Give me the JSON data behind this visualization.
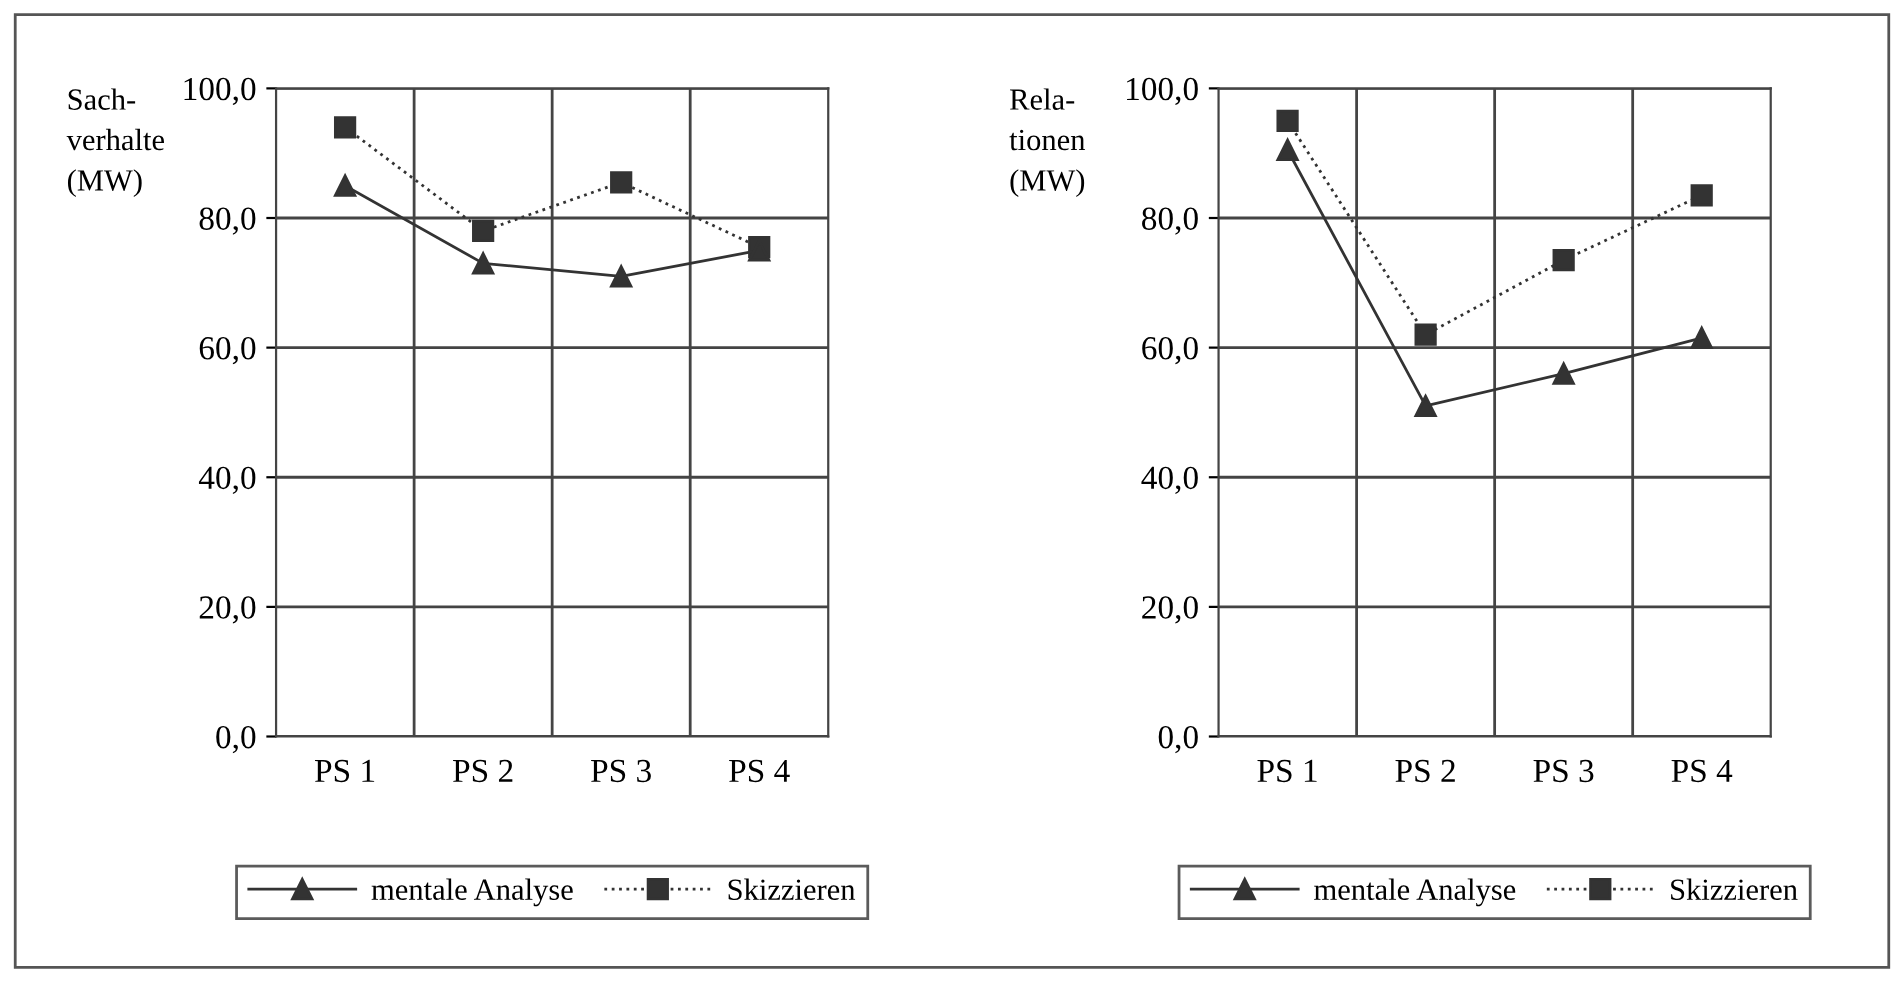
{
  "chart_data": [
    {
      "type": "line",
      "ylabel": "Sach-\nverhalte\n(MW)",
      "categories": [
        "PS 1",
        "PS 2",
        "PS 3",
        "PS 4"
      ],
      "series": [
        {
          "name": "mentale Analyse",
          "color": "#333333",
          "marker": "triangle",
          "line_style": "solid",
          "values": [
            85,
            73,
            71,
            75
          ]
        },
        {
          "name": "Skizzieren",
          "color": "#333333",
          "marker": "square",
          "line_style": "dotted",
          "values": [
            94,
            78,
            85.5,
            75.5
          ]
        }
      ],
      "ylim": [
        0,
        100
      ],
      "yticks": [
        {
          "value": 0,
          "label": "0,0"
        },
        {
          "value": 20,
          "label": "20,0"
        },
        {
          "value": 40,
          "label": "40,0"
        },
        {
          "value": 60,
          "label": "60,0"
        },
        {
          "value": 80,
          "label": "80,0"
        },
        {
          "value": 100,
          "label": "100,0"
        }
      ],
      "grid": true,
      "legend": "bottom"
    },
    {
      "type": "line",
      "ylabel": "Rela-\ntionen\n(MW)",
      "categories": [
        "PS 1",
        "PS 2",
        "PS 3",
        "PS 4"
      ],
      "series": [
        {
          "name": "mentale Analyse",
          "color": "#333333",
          "marker": "triangle",
          "line_style": "solid",
          "values": [
            90.5,
            51,
            56,
            61.5
          ]
        },
        {
          "name": "Skizzieren",
          "color": "#333333",
          "marker": "square",
          "line_style": "dotted",
          "values": [
            95,
            62,
            73.5,
            83.5
          ]
        }
      ],
      "ylim": [
        0,
        100
      ],
      "yticks": [
        {
          "value": 0,
          "label": "0,0"
        },
        {
          "value": 20,
          "label": "20,0"
        },
        {
          "value": 40,
          "label": "40,0"
        },
        {
          "value": 60,
          "label": "60,0"
        },
        {
          "value": 80,
          "label": "80,0"
        },
        {
          "value": 100,
          "label": "100,0"
        }
      ],
      "grid": true,
      "legend": "bottom"
    }
  ]
}
